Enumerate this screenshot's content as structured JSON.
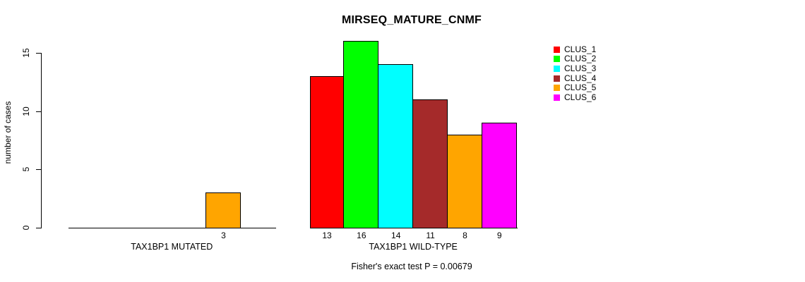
{
  "chart_data": {
    "type": "bar",
    "title": "MIRSEQ_MATURE_CNMF",
    "ylabel": "number of cases",
    "xlabel": "",
    "ylim": [
      0,
      16
    ],
    "yticks": [
      0,
      5,
      10,
      15
    ],
    "grid": false,
    "legend_position": "right",
    "categories": [
      "TAX1BP1 MUTATED",
      "TAX1BP1 WILD-TYPE"
    ],
    "series": [
      {
        "name": "CLUS_1",
        "color": "#ff0000",
        "values": [
          0,
          13
        ]
      },
      {
        "name": "CLUS_2",
        "color": "#00ff00",
        "values": [
          0,
          16
        ]
      },
      {
        "name": "CLUS_3",
        "color": "#00ffff",
        "values": [
          0,
          14
        ]
      },
      {
        "name": "CLUS_4",
        "color": "#a52a2a",
        "values": [
          0,
          11
        ]
      },
      {
        "name": "CLUS_5",
        "color": "#ffa500",
        "values": [
          3,
          8
        ]
      },
      {
        "name": "CLUS_6",
        "color": "#ff00ff",
        "values": [
          0,
          9
        ]
      }
    ],
    "value_labels_shown": [
      "3",
      "13",
      "16",
      "14",
      "11",
      "8",
      "9"
    ],
    "annotation": "Fisher's exact test P = 0.00679",
    "colors": {
      "axis": "#000000",
      "background": "#ffffff",
      "text": "#000000"
    }
  }
}
